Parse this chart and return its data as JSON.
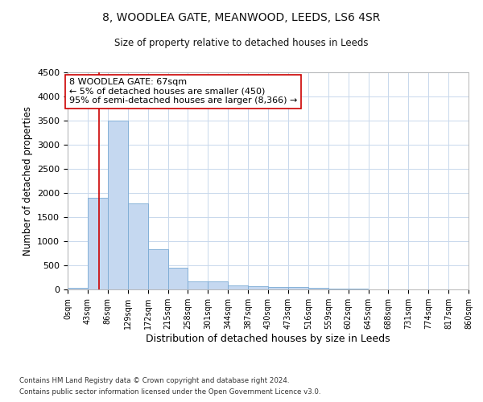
{
  "title": "8, WOODLEA GATE, MEANWOOD, LEEDS, LS6 4SR",
  "subtitle": "Size of property relative to detached houses in Leeds",
  "xlabel": "Distribution of detached houses by size in Leeds",
  "ylabel": "Number of detached properties",
  "footer_line1": "Contains HM Land Registry data © Crown copyright and database right 2024.",
  "footer_line2": "Contains public sector information licensed under the Open Government Licence v3.0.",
  "bins": [
    0,
    43,
    86,
    129,
    172,
    215,
    258,
    301,
    344,
    387,
    430,
    473,
    516,
    559,
    602,
    645,
    688,
    731,
    774,
    817,
    860
  ],
  "bar_heights": [
    30,
    1900,
    3500,
    1780,
    840,
    450,
    175,
    165,
    90,
    60,
    55,
    45,
    30,
    15,
    10,
    5,
    3,
    2,
    1,
    1
  ],
  "bar_color": "#c5d8f0",
  "bar_edge_color": "#7aaad4",
  "vline_x": 67,
  "vline_color": "#cc0000",
  "ylim": [
    0,
    4500
  ],
  "yticks": [
    0,
    500,
    1000,
    1500,
    2000,
    2500,
    3000,
    3500,
    4000,
    4500
  ],
  "annotation_text": "8 WOODLEA GATE: 67sqm\n← 5% of detached houses are smaller (450)\n95% of semi-detached houses are larger (8,366) →",
  "annotation_box_color": "#ffffff",
  "annotation_box_edge": "#cc0000",
  "bg_color": "#ffffff",
  "grid_color": "#c8d8ec"
}
